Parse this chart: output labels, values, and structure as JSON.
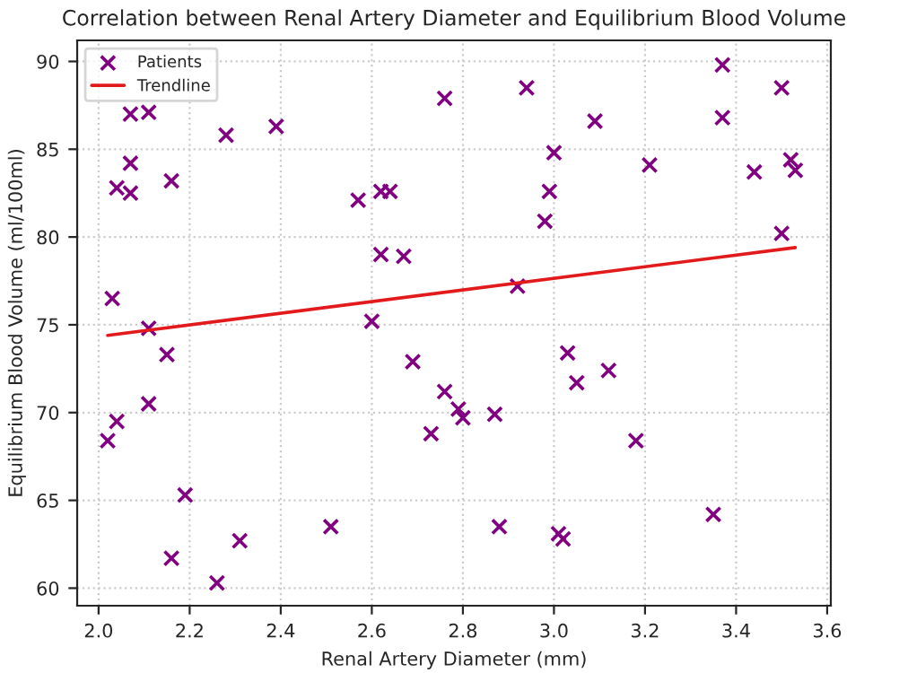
{
  "chart_data": {
    "type": "scatter",
    "title": "Correlation between Renal Artery Diameter and Equilibrium Blood Volume",
    "xlabel": "Renal Artery Diameter (mm)",
    "ylabel": "Equilibrium Blood Volume (ml/100ml)",
    "xlim": [
      1.953,
      3.608
    ],
    "ylim": [
      59.0,
      91.2
    ],
    "xticks": [
      {
        "value": 2.0,
        "label": "2.0"
      },
      2.2,
      2.4,
      2.6,
      2.8,
      {
        "value": 3.0,
        "label": "3.0"
      },
      3.2,
      3.4,
      3.6
    ],
    "yticks": [
      60,
      65,
      70,
      75,
      80,
      85,
      90
    ],
    "grid": true,
    "legend": "top left",
    "series": [
      {
        "name": "Patients",
        "marker": "cross",
        "color": "#800080",
        "x": [
          2.02,
          2.04,
          2.03,
          2.04,
          2.07,
          2.07,
          2.07,
          2.11,
          2.11,
          2.11,
          2.15,
          2.16,
          2.16,
          2.19,
          2.26,
          2.28,
          2.31,
          2.39,
          2.51,
          2.57,
          2.6,
          2.62,
          2.64,
          2.62,
          2.67,
          2.69,
          2.73,
          2.76,
          2.76,
          2.79,
          2.8,
          2.87,
          2.88,
          2.92,
          2.94,
          2.98,
          2.99,
          3.0,
          3.01,
          3.02,
          3.03,
          3.05,
          3.09,
          3.12,
          3.18,
          3.21,
          3.35,
          3.37,
          3.37,
          3.44,
          3.5,
          3.5,
          3.52,
          3.53
        ],
        "values": [
          68.4,
          69.5,
          76.5,
          82.8,
          84.2,
          82.5,
          87.0,
          87.1,
          74.8,
          70.5,
          73.3,
          83.2,
          61.7,
          65.3,
          60.3,
          85.8,
          62.7,
          86.3,
          63.5,
          82.1,
          75.2,
          82.6,
          82.6,
          79.0,
          78.9,
          72.9,
          68.8,
          71.2,
          87.9,
          70.2,
          69.7,
          69.9,
          63.5,
          77.2,
          88.5,
          80.9,
          82.6,
          84.8,
          63.1,
          62.8,
          73.4,
          71.7,
          86.6,
          72.4,
          68.4,
          84.1,
          64.2,
          89.8,
          86.8,
          83.7,
          88.5,
          80.2,
          84.4,
          83.8
        ]
      },
      {
        "name": "Trendline",
        "type": "line",
        "color": "#e31a1c",
        "x": [
          2.02,
          3.53
        ],
        "values": [
          74.4,
          79.4
        ]
      }
    ]
  }
}
